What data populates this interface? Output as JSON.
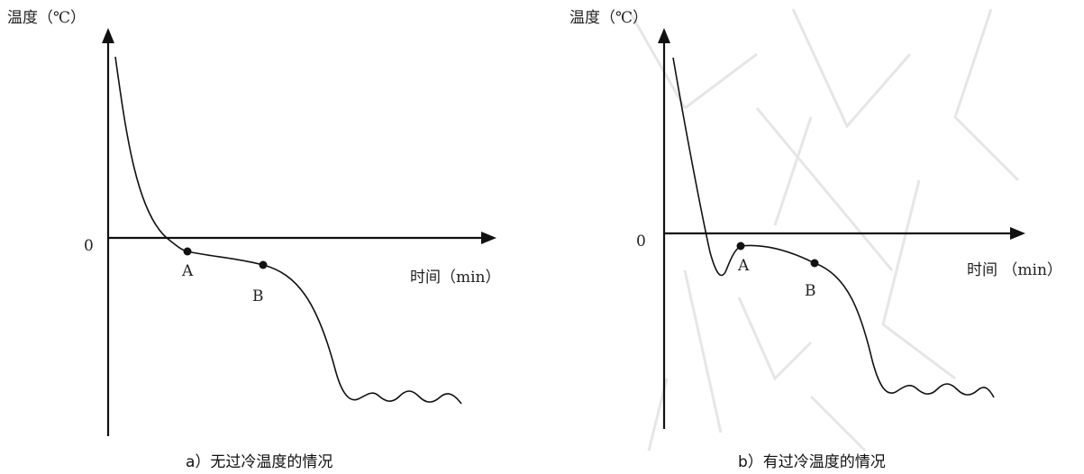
{
  "charts": [
    {
      "id": "a",
      "ylabel": "温度（℃）",
      "xlabel": "时间（min）",
      "origin_label": "0",
      "caption": "a）无过冷温度的情况",
      "points": [
        {
          "label": "A"
        },
        {
          "label": "B"
        }
      ]
    },
    {
      "id": "b",
      "ylabel": "温度（℃）",
      "xlabel": "时间 （min）",
      "origin_label": "0",
      "caption": "b）有过冷温度的情况",
      "points": [
        {
          "label": "A"
        },
        {
          "label": "B"
        }
      ]
    }
  ],
  "chart_data": [
    {
      "type": "line",
      "title": "",
      "xlabel": "时间（min）",
      "ylabel": "温度（℃）",
      "grid": false,
      "legend": "none",
      "annotations": [
        "0",
        "A",
        "B",
        "a）无过冷温度的情况"
      ]
    },
    {
      "type": "line",
      "title": "",
      "xlabel": "时间 （min）",
      "ylabel": "温度（℃）",
      "grid": false,
      "legend": "none",
      "annotations": [
        "0",
        "A",
        "B",
        "b）有过冷温度的情况"
      ]
    }
  ]
}
